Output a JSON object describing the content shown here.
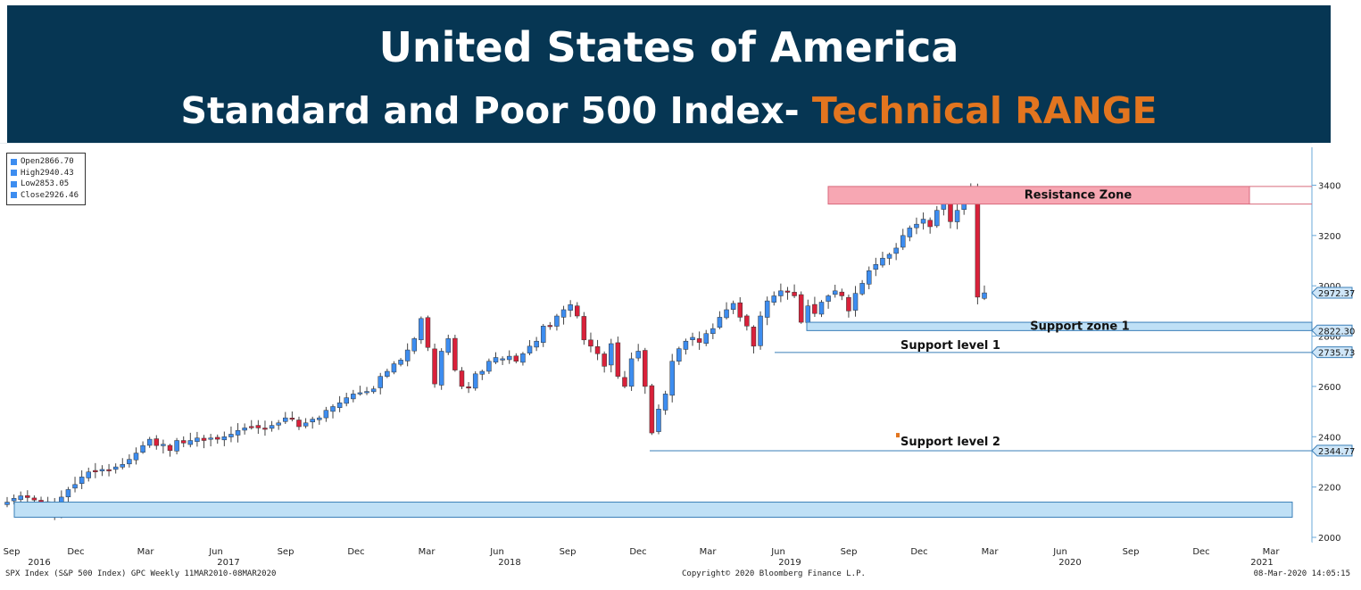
{
  "header": {
    "title": "United States of America",
    "subtitle_main": "Standard and Poor 500 Index- ",
    "subtitle_accent": "Technical RANGE",
    "background": "#063653",
    "accent_color": "#e2751f"
  },
  "legend": [
    {
      "label": "Open",
      "value": "2866.70"
    },
    {
      "label": "High",
      "value": "2940.43"
    },
    {
      "label": "Low",
      "value": "2853.05"
    },
    {
      "label": "Close",
      "value": "2926.46"
    }
  ],
  "footer": {
    "left": "SPX Index (S&P 500 Index) GPC  Weekly 11MAR2010-08MAR2020",
    "center": "Copyright© 2020 Bloomberg Finance L.P.",
    "right": "08-Mar-2020 14:05:15"
  },
  "chart_data": {
    "type": "candlestick",
    "ylim": [
      2000,
      3500
    ],
    "yticks": [
      2000,
      2200,
      2400,
      2600,
      2800,
      3000,
      3200,
      3400
    ],
    "price_tags": [
      "2972.37",
      "2822.30",
      "2735.73",
      "2344.77"
    ],
    "x_month_labels": [
      "Sep",
      "Dec",
      "Mar",
      "Jun",
      "Sep",
      "Dec",
      "Mar",
      "Jun",
      "Sep",
      "Dec",
      "Mar",
      "Jun",
      "Sep",
      "Dec",
      "Mar",
      "Jun",
      "Sep",
      "Dec",
      "Mar"
    ],
    "x_year_labels": [
      "2016",
      "2017",
      "2018",
      "2019",
      "2020",
      "2021"
    ],
    "x_start": "2016-09",
    "grid": false,
    "colors": {
      "up": "#3d8df0",
      "down": "#d9213a",
      "zone_red": "#f7a7b3",
      "zone_blue": "#bfe0f6",
      "line": "#3a7fb8"
    },
    "annotations": [
      {
        "label": "Resistance Zone",
        "low": 3325,
        "high": 3395
      },
      {
        "label": "Support zone 1",
        "low": 2822,
        "high": 2855
      },
      {
        "label": "Support level 1",
        "value": 2735
      },
      {
        "label": "Support level 2",
        "value": 2344
      },
      {
        "label": "",
        "low": 2080,
        "high": 2140
      }
    ],
    "weekly_close": [
      2140,
      2155,
      2165,
      2158,
      2148,
      2140,
      2130,
      2095,
      2160,
      2190,
      2210,
      2240,
      2260,
      2260,
      2270,
      2265,
      2280,
      2290,
      2310,
      2335,
      2365,
      2390,
      2365,
      2370,
      2345,
      2385,
      2375,
      2385,
      2395,
      2385,
      2395,
      2390,
      2400,
      2410,
      2425,
      2435,
      2440,
      2435,
      2430,
      2445,
      2455,
      2475,
      2470,
      2440,
      2455,
      2470,
      2475,
      2505,
      2520,
      2535,
      2555,
      2570,
      2575,
      2580,
      2590,
      2640,
      2660,
      2690,
      2705,
      2745,
      2790,
      2870,
      2755,
      2610,
      2740,
      2790,
      2665,
      2600,
      2595,
      2650,
      2660,
      2700,
      2715,
      2710,
      2720,
      2700,
      2730,
      2760,
      2780,
      2840,
      2840,
      2880,
      2905,
      2925,
      2880,
      2785,
      2760,
      2730,
      2680,
      2770,
      2640,
      2600,
      2710,
      2740,
      2600,
      2415,
      2510,
      2570,
      2700,
      2750,
      2780,
      2795,
      2775,
      2810,
      2830,
      2875,
      2905,
      2930,
      2875,
      2840,
      2760,
      2880,
      2940,
      2960,
      2980,
      2975,
      2960,
      2855,
      2920,
      2890,
      2935,
      2960,
      2980,
      2960,
      2900,
      2970,
      3010,
      3060,
      3085,
      3110,
      3125,
      3150,
      3200,
      3230,
      3245,
      3265,
      3235,
      3300,
      3330,
      3255,
      3300,
      3380,
      3375,
      2955,
      2972
    ]
  }
}
